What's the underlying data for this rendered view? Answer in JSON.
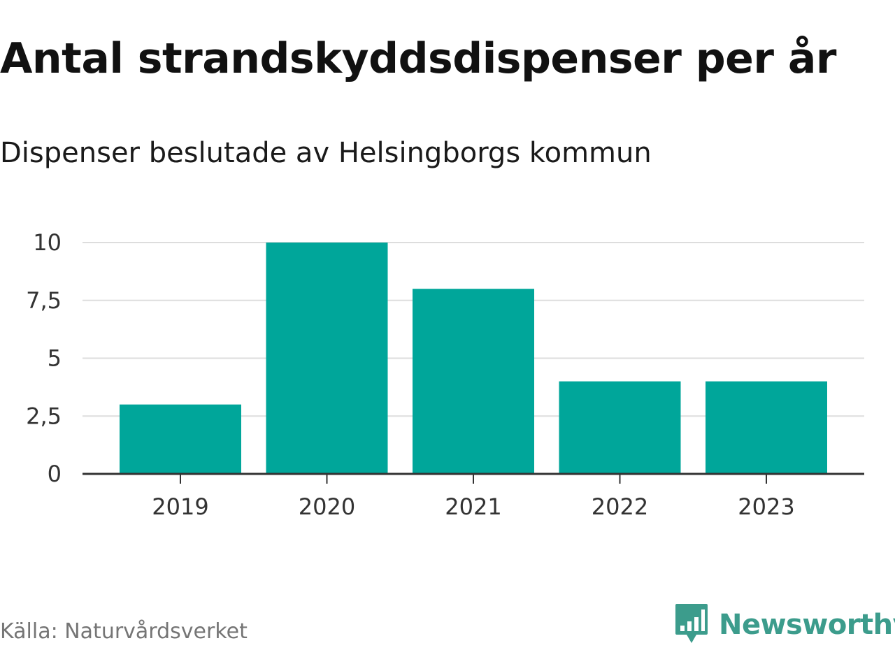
{
  "colors": {
    "bar": "#00a69a",
    "grid": "#dddddd",
    "axis": "#333333",
    "brand": "#3c9c8c"
  },
  "chart_data": {
    "type": "bar",
    "title": "Antal strandskyddsdispenser per år",
    "subtitle": "Dispenser beslutade av Helsingborgs kommun",
    "categories": [
      "2019",
      "2020",
      "2021",
      "2022",
      "2023"
    ],
    "values": [
      3,
      10,
      8,
      4,
      4
    ],
    "ylim": [
      0,
      10
    ],
    "yticks": [
      0,
      2.5,
      5,
      7.5,
      10
    ],
    "ytick_labels": [
      "0",
      "2,5",
      "5",
      "7,5",
      "10"
    ],
    "xlabel": "",
    "ylabel": "",
    "grid": true
  },
  "footer": {
    "source": "Källa: Naturvårdsverket",
    "brand": "Newsworthy"
  },
  "icons": {
    "logo": "bar-chart-speech-bubble-icon"
  }
}
